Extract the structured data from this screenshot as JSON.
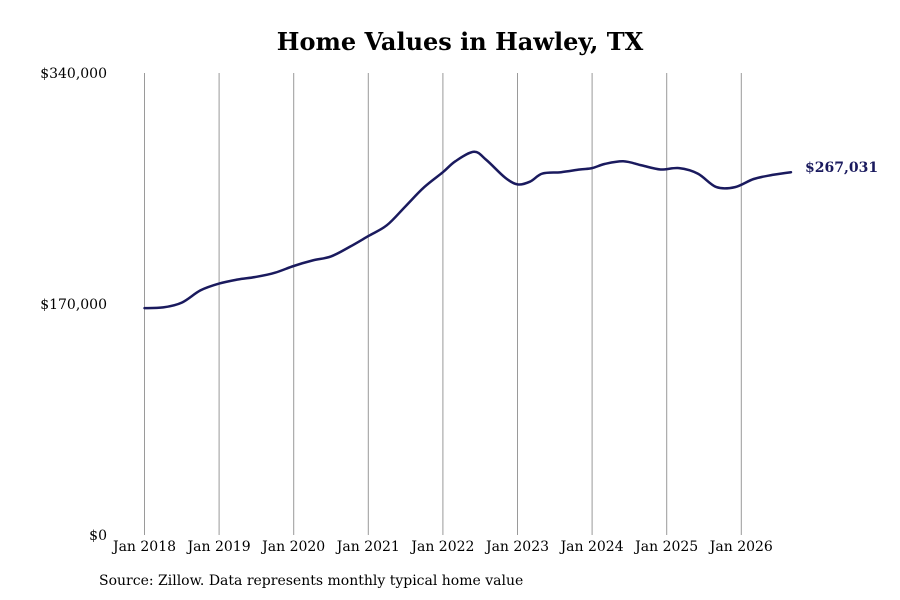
{
  "chart_data": {
    "type": "line",
    "title": "Home Values in Hawley, TX",
    "source_note": "Source: Zillow. Data represents monthly typical home value",
    "ylim": [
      0,
      340000
    ],
    "y_ticks": [
      {
        "value": 0,
        "label": "$0"
      },
      {
        "value": 170000,
        "label": "$170,000"
      },
      {
        "value": 340000,
        "label": "$340,000"
      }
    ],
    "x_ticks": [
      {
        "x": "2018-01",
        "label": "Jan 2018"
      },
      {
        "x": "2019-01",
        "label": "Jan 2019"
      },
      {
        "x": "2020-01",
        "label": "Jan 2020"
      },
      {
        "x": "2021-01",
        "label": "Jan 2021"
      },
      {
        "x": "2022-01",
        "label": "Jan 2022"
      },
      {
        "x": "2023-01",
        "label": "Jan 2023"
      },
      {
        "x": "2024-01",
        "label": "Jan 2024"
      },
      {
        "x": "2025-01",
        "label": "Jan 2025"
      },
      {
        "x": "2026-01",
        "label": "Jan 2026"
      }
    ],
    "grid": "vertical",
    "line_color": "#1a1a5e",
    "end_label": "$267,031",
    "series": [
      {
        "x": [
          "2018-01",
          "2018-04",
          "2018-07",
          "2018-10",
          "2019-01",
          "2019-04",
          "2019-07",
          "2019-10",
          "2020-01",
          "2020-04",
          "2020-07",
          "2020-10",
          "2021-01",
          "2021-04",
          "2021-07",
          "2021-10",
          "2022-01",
          "2022-03",
          "2022-06",
          "2022-08",
          "2022-11",
          "2023-01",
          "2023-03",
          "2023-05",
          "2023-08",
          "2023-11",
          "2024-01",
          "2024-03",
          "2024-06",
          "2024-09",
          "2024-12",
          "2025-03",
          "2025-06",
          "2025-09",
          "2025-12",
          "2026-03",
          "2026-06",
          "2026-09"
        ],
        "y": [
          167000,
          167500,
          171000,
          180000,
          185000,
          188000,
          190000,
          193000,
          198000,
          202000,
          205000,
          212000,
          220000,
          228000,
          242000,
          256000,
          267000,
          275000,
          282000,
          276000,
          263000,
          258000,
          260000,
          266000,
          267000,
          269000,
          270000,
          273000,
          275000,
          272000,
          269000,
          270000,
          266000,
          256000,
          256000,
          262000,
          265000,
          267031
        ]
      }
    ]
  }
}
